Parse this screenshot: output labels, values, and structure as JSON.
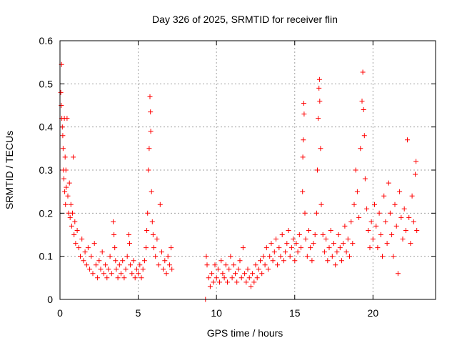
{
  "chart_data": {
    "type": "scatter",
    "title": "Day 326 of 2025, SRMTID for receiver flin",
    "xlabel": "GPS time / hours",
    "ylabel": "SRMTID / TECUs",
    "xlim": [
      0,
      24
    ],
    "ylim": [
      0,
      0.6
    ],
    "xticks": [
      0,
      5,
      10,
      15,
      20
    ],
    "yticks": [
      0,
      0.1,
      0.2,
      0.3,
      0.4,
      0.5,
      0.6
    ],
    "grid": true,
    "marker": "+",
    "color": "#ff0000",
    "series": [
      {
        "name": "SRMTID",
        "points": [
          [
            0.05,
            0.48
          ],
          [
            0.08,
            0.45
          ],
          [
            0.1,
            0.545
          ],
          [
            0.12,
            0.42
          ],
          [
            0.15,
            0.4
          ],
          [
            0.18,
            0.38
          ],
          [
            0.2,
            0.35
          ],
          [
            0.22,
            0.3
          ],
          [
            0.25,
            0.28
          ],
          [
            0.28,
            0.42
          ],
          [
            0.3,
            0.25
          ],
          [
            0.33,
            0.33
          ],
          [
            0.35,
            0.22
          ],
          [
            0.38,
            0.3
          ],
          [
            0.4,
            0.26
          ],
          [
            0.45,
            0.42
          ],
          [
            0.5,
            0.24
          ],
          [
            0.55,
            0.2
          ],
          [
            0.6,
            0.27
          ],
          [
            0.65,
            0.19
          ],
          [
            0.7,
            0.22
          ],
          [
            0.75,
            0.17
          ],
          [
            0.8,
            0.2
          ],
          [
            0.85,
            0.33
          ],
          [
            0.9,
            0.15
          ],
          [
            0.95,
            0.18
          ],
          [
            1.0,
            0.13
          ],
          [
            1.1,
            0.16
          ],
          [
            1.2,
            0.12
          ],
          [
            1.3,
            0.1
          ],
          [
            1.4,
            0.14
          ],
          [
            1.5,
            0.09
          ],
          [
            1.6,
            0.11
          ],
          [
            1.7,
            0.08
          ],
          [
            1.8,
            0.12
          ],
          [
            1.9,
            0.07
          ],
          [
            2.0,
            0.1
          ],
          [
            2.1,
            0.06
          ],
          [
            2.2,
            0.13
          ],
          [
            2.3,
            0.08
          ],
          [
            2.4,
            0.05
          ],
          [
            2.5,
            0.09
          ],
          [
            2.6,
            0.07
          ],
          [
            2.7,
            0.11
          ],
          [
            2.8,
            0.06
          ],
          [
            2.9,
            0.08
          ],
          [
            3.0,
            0.05
          ],
          [
            3.1,
            0.07
          ],
          [
            3.2,
            0.1
          ],
          [
            3.3,
            0.06
          ],
          [
            3.4,
            0.18
          ],
          [
            3.45,
            0.15
          ],
          [
            3.5,
            0.12
          ],
          [
            3.55,
            0.09
          ],
          [
            3.6,
            0.07
          ],
          [
            3.7,
            0.05
          ],
          [
            3.8,
            0.08
          ],
          [
            3.9,
            0.06
          ],
          [
            4.0,
            0.09
          ],
          [
            4.1,
            0.05
          ],
          [
            4.2,
            0.07
          ],
          [
            4.3,
            0.1
          ],
          [
            4.4,
            0.15
          ],
          [
            4.45,
            0.13
          ],
          [
            4.5,
            0.08
          ],
          [
            4.6,
            0.06
          ],
          [
            4.7,
            0.09
          ],
          [
            4.8,
            0.05
          ],
          [
            4.9,
            0.07
          ],
          [
            5.0,
            0.06
          ],
          [
            5.1,
            0.08
          ],
          [
            5.2,
            0.05
          ],
          [
            5.3,
            0.07
          ],
          [
            5.4,
            0.09
          ],
          [
            5.5,
            0.12
          ],
          [
            5.55,
            0.16
          ],
          [
            5.6,
            0.2
          ],
          [
            5.65,
            0.3
          ],
          [
            5.7,
            0.35
          ],
          [
            5.75,
            0.47
          ],
          [
            5.78,
            0.435
          ],
          [
            5.8,
            0.39
          ],
          [
            5.85,
            0.25
          ],
          [
            5.9,
            0.18
          ],
          [
            5.95,
            0.15
          ],
          [
            6.0,
            0.12
          ],
          [
            6.1,
            0.1
          ],
          [
            6.2,
            0.14
          ],
          [
            6.3,
            0.08
          ],
          [
            6.4,
            0.22
          ],
          [
            6.5,
            0.11
          ],
          [
            6.6,
            0.07
          ],
          [
            6.7,
            0.09
          ],
          [
            6.8,
            0.06
          ],
          [
            6.9,
            0.1
          ],
          [
            7.0,
            0.08
          ],
          [
            7.1,
            0.12
          ],
          [
            7.15,
            0.07
          ],
          [
            9.3,
            0.0
          ],
          [
            9.35,
            0.1
          ],
          [
            9.4,
            0.08
          ],
          [
            9.5,
            0.05
          ],
          [
            9.6,
            0.03
          ],
          [
            9.7,
            0.06
          ],
          [
            9.8,
            0.04
          ],
          [
            9.9,
            0.08
          ],
          [
            10.0,
            0.05
          ],
          [
            10.1,
            0.07
          ],
          [
            10.2,
            0.04
          ],
          [
            10.3,
            0.09
          ],
          [
            10.4,
            0.06
          ],
          [
            10.5,
            0.05
          ],
          [
            10.6,
            0.08
          ],
          [
            10.7,
            0.04
          ],
          [
            10.8,
            0.07
          ],
          [
            10.9,
            0.1
          ],
          [
            11.0,
            0.05
          ],
          [
            11.1,
            0.08
          ],
          [
            11.2,
            0.06
          ],
          [
            11.3,
            0.04
          ],
          [
            11.4,
            0.07
          ],
          [
            11.5,
            0.09
          ],
          [
            11.6,
            0.05
          ],
          [
            11.7,
            0.12
          ],
          [
            11.8,
            0.06
          ],
          [
            11.9,
            0.04
          ],
          [
            12.0,
            0.07
          ],
          [
            12.1,
            0.05
          ],
          [
            12.2,
            0.03
          ],
          [
            12.3,
            0.06
          ],
          [
            12.4,
            0.04
          ],
          [
            12.5,
            0.08
          ],
          [
            12.6,
            0.05
          ],
          [
            12.7,
            0.07
          ],
          [
            12.8,
            0.09
          ],
          [
            12.9,
            0.06
          ],
          [
            13.0,
            0.1
          ],
          [
            13.1,
            0.08
          ],
          [
            13.2,
            0.12
          ],
          [
            13.3,
            0.07
          ],
          [
            13.4,
            0.1
          ],
          [
            13.5,
            0.13
          ],
          [
            13.6,
            0.09
          ],
          [
            13.7,
            0.11
          ],
          [
            13.8,
            0.14
          ],
          [
            13.9,
            0.08
          ],
          [
            14.0,
            0.12
          ],
          [
            14.1,
            0.1
          ],
          [
            14.2,
            0.15
          ],
          [
            14.3,
            0.09
          ],
          [
            14.4,
            0.11
          ],
          [
            14.5,
            0.13
          ],
          [
            14.6,
            0.16
          ],
          [
            14.7,
            0.1
          ],
          [
            14.8,
            0.12
          ],
          [
            14.9,
            0.14
          ],
          [
            15.0,
            0.09
          ],
          [
            15.1,
            0.13
          ],
          [
            15.2,
            0.11
          ],
          [
            15.3,
            0.15
          ],
          [
            15.4,
            0.12
          ],
          [
            15.5,
            0.25
          ],
          [
            15.52,
            0.33
          ],
          [
            15.55,
            0.37
          ],
          [
            15.58,
            0.455
          ],
          [
            15.6,
            0.43
          ],
          [
            15.65,
            0.2
          ],
          [
            15.7,
            0.14
          ],
          [
            15.8,
            0.1
          ],
          [
            15.9,
            0.16
          ],
          [
            16.0,
            0.12
          ],
          [
            16.1,
            0.09
          ],
          [
            16.2,
            0.13
          ],
          [
            16.3,
            0.15
          ],
          [
            16.4,
            0.2
          ],
          [
            16.45,
            0.3
          ],
          [
            16.5,
            0.42
          ],
          [
            16.55,
            0.49
          ],
          [
            16.58,
            0.51
          ],
          [
            16.6,
            0.46
          ],
          [
            16.65,
            0.35
          ],
          [
            16.7,
            0.22
          ],
          [
            16.8,
            0.15
          ],
          [
            16.9,
            0.11
          ],
          [
            17.0,
            0.14
          ],
          [
            17.1,
            0.09
          ],
          [
            17.2,
            0.12
          ],
          [
            17.3,
            0.16
          ],
          [
            17.4,
            0.1
          ],
          [
            17.5,
            0.13
          ],
          [
            17.6,
            0.08
          ],
          [
            17.7,
            0.11
          ],
          [
            17.8,
            0.15
          ],
          [
            17.9,
            0.12
          ],
          [
            18.0,
            0.09
          ],
          [
            18.1,
            0.13
          ],
          [
            18.2,
            0.17
          ],
          [
            18.3,
            0.11
          ],
          [
            18.4,
            0.14
          ],
          [
            18.5,
            0.1
          ],
          [
            18.6,
            0.18
          ],
          [
            18.7,
            0.13
          ],
          [
            18.8,
            0.22
          ],
          [
            18.9,
            0.3
          ],
          [
            19.0,
            0.25
          ],
          [
            19.1,
            0.19
          ],
          [
            19.2,
            0.35
          ],
          [
            19.3,
            0.46
          ],
          [
            19.35,
            0.527
          ],
          [
            19.4,
            0.44
          ],
          [
            19.45,
            0.38
          ],
          [
            19.5,
            0.28
          ],
          [
            19.6,
            0.21
          ],
          [
            19.7,
            0.16
          ],
          [
            19.8,
            0.12
          ],
          [
            19.9,
            0.18
          ],
          [
            20.0,
            0.14
          ],
          [
            20.1,
            0.22
          ],
          [
            20.2,
            0.17
          ],
          [
            20.3,
            0.12
          ],
          [
            20.4,
            0.2
          ],
          [
            20.5,
            0.15
          ],
          [
            20.6,
            0.1
          ],
          [
            20.7,
            0.24
          ],
          [
            20.8,
            0.18
          ],
          [
            20.9,
            0.13
          ],
          [
            21.0,
            0.27
          ],
          [
            21.1,
            0.2
          ],
          [
            21.2,
            0.15
          ],
          [
            21.3,
            0.1
          ],
          [
            21.4,
            0.22
          ],
          [
            21.5,
            0.17
          ],
          [
            21.6,
            0.06
          ],
          [
            21.7,
            0.25
          ],
          [
            21.8,
            0.19
          ],
          [
            21.9,
            0.14
          ],
          [
            22.0,
            0.21
          ],
          [
            22.1,
            0.16
          ],
          [
            22.2,
            0.37
          ],
          [
            22.3,
            0.19
          ],
          [
            22.4,
            0.13
          ],
          [
            22.5,
            0.24
          ],
          [
            22.6,
            0.18
          ],
          [
            22.7,
            0.29
          ],
          [
            22.75,
            0.32
          ],
          [
            22.8,
            0.16
          ]
        ]
      }
    ]
  }
}
